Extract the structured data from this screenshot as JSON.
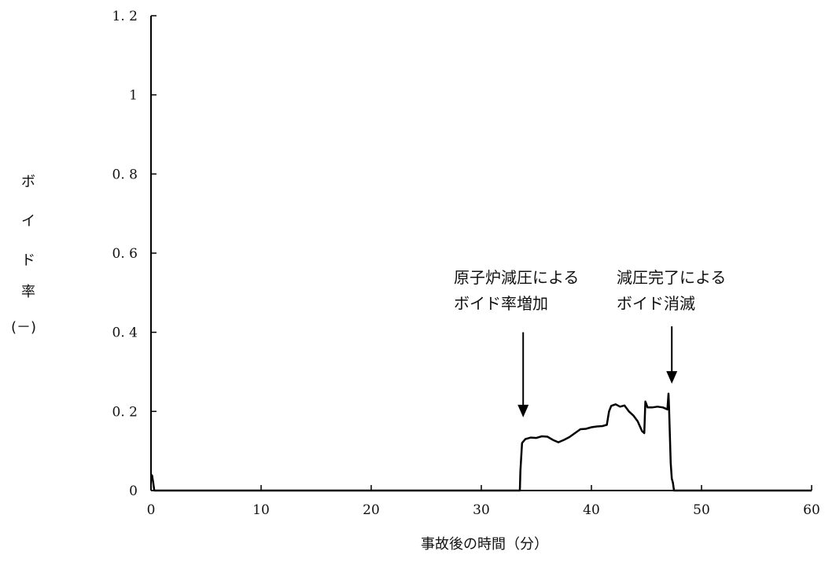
{
  "chart_data": {
    "type": "line",
    "title": "",
    "xlabel": "事故後の時間（分）",
    "ylabel_chars": [
      "ボ",
      "イ",
      "ド",
      "率",
      "(－)"
    ],
    "xlim": [
      0,
      60
    ],
    "ylim": [
      0,
      1.2
    ],
    "x_ticks": [
      0,
      10,
      20,
      30,
      40,
      50,
      60
    ],
    "y_ticks": [
      0,
      0.2,
      0.4,
      0.6,
      0.8,
      1,
      1.2
    ],
    "x_tick_labels": [
      "0",
      "10",
      "20",
      "30",
      "40",
      "50",
      "60"
    ],
    "y_tick_labels": [
      "0",
      "0. 2",
      "0. 4",
      "0. 6",
      "0. 8",
      "1",
      "1. 2"
    ],
    "grid": false,
    "legend": "none",
    "series": [
      {
        "color": "#000000",
        "points": [
          [
            0,
            0.04
          ],
          [
            0.1,
            0.038
          ],
          [
            0.2,
            0.02
          ],
          [
            0.3,
            0.0
          ],
          [
            33.5,
            0.0
          ],
          [
            33.55,
            0.05
          ],
          [
            33.7,
            0.12
          ],
          [
            34.0,
            0.13
          ],
          [
            34.5,
            0.134
          ],
          [
            35.0,
            0.133
          ],
          [
            35.5,
            0.137
          ],
          [
            36.0,
            0.136
          ],
          [
            36.5,
            0.128
          ],
          [
            37.0,
            0.122
          ],
          [
            37.5,
            0.128
          ],
          [
            38.0,
            0.135
          ],
          [
            38.5,
            0.145
          ],
          [
            39.0,
            0.155
          ],
          [
            39.5,
            0.156
          ],
          [
            40.0,
            0.16
          ],
          [
            40.5,
            0.162
          ],
          [
            41.0,
            0.163
          ],
          [
            41.4,
            0.166
          ],
          [
            41.6,
            0.2
          ],
          [
            41.8,
            0.214
          ],
          [
            42.2,
            0.218
          ],
          [
            42.6,
            0.212
          ],
          [
            43.0,
            0.215
          ],
          [
            43.4,
            0.2
          ],
          [
            43.8,
            0.19
          ],
          [
            44.2,
            0.175
          ],
          [
            44.6,
            0.15
          ],
          [
            44.8,
            0.145
          ],
          [
            44.9,
            0.225
          ],
          [
            45.1,
            0.21
          ],
          [
            45.5,
            0.21
          ],
          [
            46.0,
            0.212
          ],
          [
            46.5,
            0.21
          ],
          [
            46.9,
            0.205
          ],
          [
            47.0,
            0.245
          ],
          [
            47.05,
            0.21
          ],
          [
            47.2,
            0.07
          ],
          [
            47.3,
            0.03
          ],
          [
            47.4,
            0.02
          ],
          [
            47.5,
            0.0
          ],
          [
            60,
            0.0
          ]
        ]
      }
    ],
    "annotations": [
      {
        "lines": [
          "原子炉減圧による",
          "ボイド率増加"
        ],
        "arrow_x": 33.8,
        "arrow_y_top": 0.4,
        "arrow_y_bottom": 0.185
      },
      {
        "lines": [
          "減圧完了による",
          "ボイド消滅"
        ],
        "arrow_x": 47.3,
        "arrow_y_top": 0.415,
        "arrow_y_bottom": 0.27
      }
    ]
  }
}
